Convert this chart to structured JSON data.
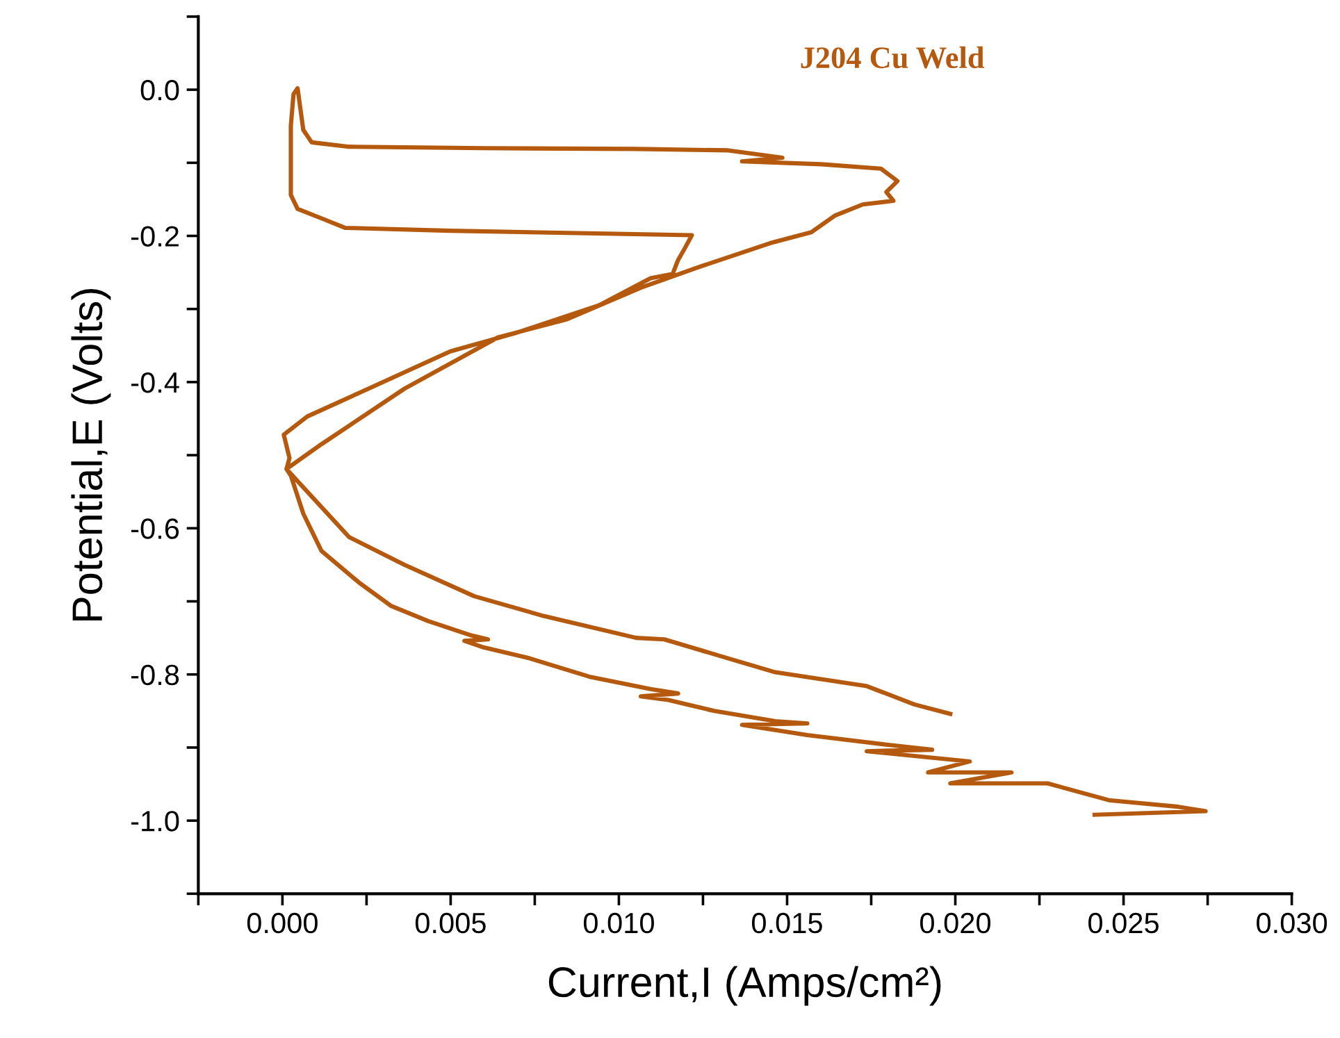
{
  "chart_data": {
    "type": "line",
    "title": "J204 Cu Weld",
    "xlabel": "Current,I (Amps/cm²)",
    "ylabel": "Potential,E (Volts)",
    "xlim": [
      -0.0025,
      0.03
    ],
    "ylim": [
      -1.1,
      0.1
    ],
    "xticks": [
      {
        "value": -0.0025,
        "label": null
      },
      {
        "value": 0.0,
        "label": "0.000"
      },
      {
        "value": 0.0025,
        "label": null
      },
      {
        "value": 0.005,
        "label": "0.005"
      },
      {
        "value": 0.0075,
        "label": null
      },
      {
        "value": 0.01,
        "label": "0.010"
      },
      {
        "value": 0.0125,
        "label": null
      },
      {
        "value": 0.015,
        "label": "0.015"
      },
      {
        "value": 0.0175,
        "label": null
      },
      {
        "value": 0.02,
        "label": "0.020"
      },
      {
        "value": 0.0225,
        "label": null
      },
      {
        "value": 0.025,
        "label": "0.025"
      },
      {
        "value": 0.0275,
        "label": null
      },
      {
        "value": 0.03,
        "label": "0.030"
      }
    ],
    "yticks": [
      {
        "value": 0.1,
        "label": null
      },
      {
        "value": 0.0,
        "label": "0.0"
      },
      {
        "value": -0.1,
        "label": null
      },
      {
        "value": -0.2,
        "label": "-0.2"
      },
      {
        "value": -0.3,
        "label": null
      },
      {
        "value": -0.4,
        "label": "-0.4"
      },
      {
        "value": -0.5,
        "label": null
      },
      {
        "value": -0.6,
        "label": "-0.6"
      },
      {
        "value": -0.7,
        "label": null
      },
      {
        "value": -0.8,
        "label": "-0.8"
      },
      {
        "value": -0.9,
        "label": null
      },
      {
        "value": -1.0,
        "label": "-1.0"
      },
      {
        "value": -1.1,
        "label": null
      }
    ],
    "grid": false,
    "marker": "none",
    "line_style": "solid",
    "series": [
      {
        "color": "#b5590f",
        "x": [
          0.02414,
          0.02744,
          0.02662,
          0.02456,
          0.02274,
          0.01985,
          0.02167,
          0.01919,
          0.02043,
          0.01737,
          0.01931,
          0.01795,
          0.0156,
          0.01366,
          0.0156,
          0.01465,
          0.01284,
          0.01147,
          0.01065,
          0.01176,
          0.01094,
          0.00912,
          0.00735,
          0.00598,
          0.00541,
          0.00611,
          0.00557,
          0.00433,
          0.00322,
          0.00227,
          0.00116,
          0.00062,
          0.00025,
          0.00012,
          0.00116,
          0.00363,
          0.0064,
          0.00846,
          0.01065,
          0.01242,
          0.01449,
          0.01572,
          0.01643,
          0.01725,
          0.01816,
          0.01795,
          0.01828,
          0.01779,
          0.01601,
          0.01366,
          0.01486,
          0.01325,
          0.01052,
          0.00598,
          0.00198,
          0.00087,
          0.00062,
          0.00045,
          0.00033,
          0.00025,
          0.00025,
          0.00045,
          0.00116,
          0.00186,
          0.00499,
          0.01217,
          0.01197,
          0.01176,
          0.0116,
          0.01094,
          0.00941,
          0.00693,
          0.00499,
          0.00227,
          0.00074,
          4e-05,
          0.00021,
          0.00012,
          0.00198,
          0.00363,
          0.0057,
          0.00776,
          0.01052,
          0.01135,
          0.01325,
          0.01465,
          0.01737,
          0.01878,
          0.01985
        ],
        "values": [
          -0.992,
          -0.987,
          -0.981,
          -0.972,
          -0.949,
          -0.949,
          -0.934,
          -0.934,
          -0.919,
          -0.905,
          -0.903,
          -0.896,
          -0.883,
          -0.869,
          -0.867,
          -0.864,
          -0.85,
          -0.835,
          -0.83,
          -0.826,
          -0.82,
          -0.803,
          -0.778,
          -0.763,
          -0.754,
          -0.752,
          -0.746,
          -0.727,
          -0.706,
          -0.674,
          -0.631,
          -0.58,
          -0.528,
          -0.519,
          -0.485,
          -0.409,
          -0.339,
          -0.314,
          -0.271,
          -0.242,
          -0.21,
          -0.195,
          -0.172,
          -0.157,
          -0.152,
          -0.14,
          -0.125,
          -0.108,
          -0.102,
          -0.098,
          -0.093,
          -0.083,
          -0.081,
          -0.08,
          -0.078,
          -0.072,
          -0.055,
          0.002,
          -0.006,
          -0.049,
          -0.144,
          -0.163,
          -0.176,
          -0.189,
          -0.193,
          -0.199,
          -0.216,
          -0.233,
          -0.252,
          -0.258,
          -0.295,
          -0.333,
          -0.358,
          -0.415,
          -0.447,
          -0.472,
          -0.504,
          -0.519,
          -0.612,
          -0.65,
          -0.693,
          -0.72,
          -0.75,
          -0.752,
          -0.778,
          -0.797,
          -0.816,
          -0.841,
          -0.854
        ]
      }
    ]
  }
}
